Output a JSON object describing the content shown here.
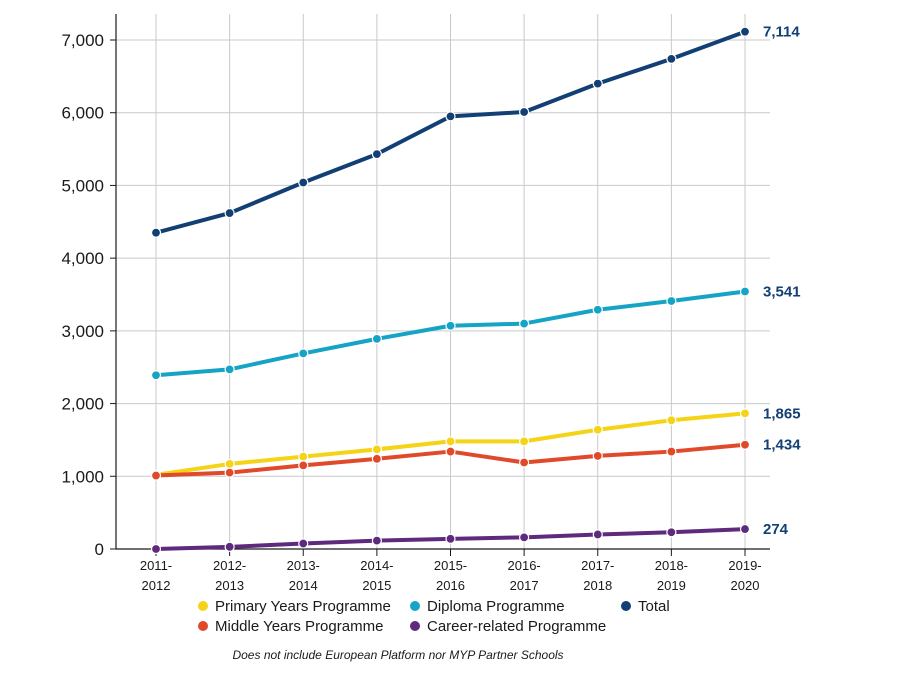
{
  "chart_data": {
    "type": "line",
    "categories": [
      "2011-2012",
      "2012-2013",
      "2013-2014",
      "2014-2015",
      "2015-2016",
      "2016-2017",
      "2017-2018",
      "2018-2019",
      "2019-2020"
    ],
    "category_lines": [
      [
        "2011-",
        "2012"
      ],
      [
        "2012-",
        "2013"
      ],
      [
        "2013-",
        "2014"
      ],
      [
        "2014-",
        "2015"
      ],
      [
        "2015-",
        "2016"
      ],
      [
        "2016-",
        "2017"
      ],
      [
        "2017-",
        "2018"
      ],
      [
        "2018-",
        "2019"
      ],
      [
        "2019-",
        "2020"
      ]
    ],
    "ylim": [
      0,
      7300
    ],
    "yticks": [
      0,
      1000,
      2000,
      3000,
      4000,
      5000,
      6000,
      7000
    ],
    "ytick_labels": [
      "0",
      "1,000",
      "2,000",
      "3,000",
      "4,000",
      "5,000",
      "6,000",
      "7,000"
    ],
    "grid": true,
    "legend_position": "bottom",
    "series": [
      {
        "key": "total",
        "name": "Total",
        "color": "#123f74",
        "values": [
          4350,
          4620,
          5040,
          5430,
          5950,
          6010,
          6400,
          6740,
          7114
        ],
        "end_label": "7,114"
      },
      {
        "key": "dp",
        "name": "Diploma Programme",
        "color": "#16a4c6",
        "values": [
          2390,
          2470,
          2690,
          2890,
          3070,
          3100,
          3290,
          3410,
          3541
        ],
        "end_label": "3,541"
      },
      {
        "key": "pyp",
        "name": "Primary Years Programme",
        "color": "#f5d316",
        "values": [
          1020,
          1170,
          1270,
          1370,
          1480,
          1480,
          1640,
          1770,
          1865
        ],
        "end_label": "1,865"
      },
      {
        "key": "myp",
        "name": "Middle Years Programme",
        "color": "#e04a2a",
        "values": [
          1010,
          1050,
          1150,
          1240,
          1340,
          1190,
          1280,
          1340,
          1434
        ],
        "end_label": "1,434"
      },
      {
        "key": "cp",
        "name": "Career-related Programme",
        "color": "#5e2a7d",
        "values": [
          0,
          30,
          75,
          115,
          140,
          160,
          200,
          230,
          274
        ],
        "end_label": "274"
      }
    ],
    "legend_order": [
      "pyp",
      "dp",
      "total",
      "myp",
      "cp"
    ],
    "note": "Does not include European Platform nor MYP Partner Schools"
  }
}
